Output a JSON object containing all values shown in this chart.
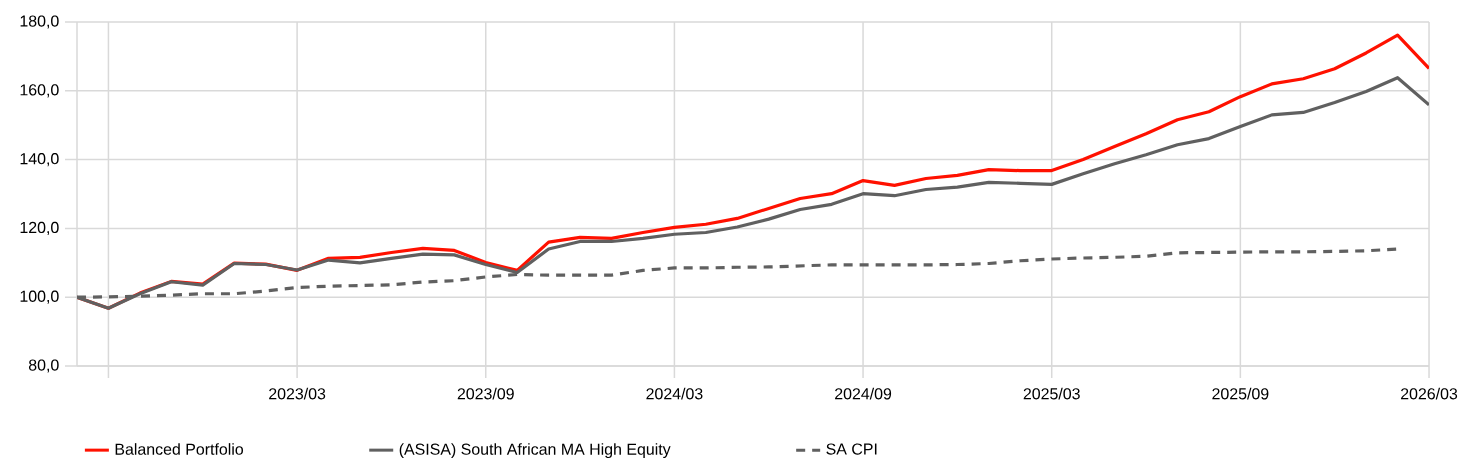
{
  "chart_data": {
    "type": "line",
    "x": [
      "2022-08",
      "2022-09",
      "2022-10",
      "2022-11",
      "2022-12",
      "2023-01",
      "2023-02",
      "2023-03",
      "2023-04",
      "2023-05",
      "2023-06",
      "2023-07",
      "2023-08",
      "2023-09",
      "2023-10",
      "2023-11",
      "2023-12",
      "2024-01",
      "2024-02",
      "2024-03",
      "2024-04",
      "2024-05",
      "2024-06",
      "2024-07",
      "2024-08",
      "2024-09",
      "2024-10",
      "2024-11",
      "2024-12",
      "2025-01",
      "2025-02",
      "2025-03",
      "2025-04",
      "2025-05",
      "2025-06",
      "2025-07",
      "2025-08",
      "2025-09",
      "2025-10",
      "2025-11",
      "2025-12",
      "2026-01",
      "2026-02",
      "2026-03"
    ],
    "series": [
      {
        "name": "Balanced Portfolio",
        "color": "#ff1100",
        "line_style": "solid",
        "values": [
          100,
          96.8,
          101.2,
          104.6,
          103.8,
          109.9,
          109.6,
          107.8,
          111.3,
          111.6,
          113.0,
          114.2,
          113.6,
          110.1,
          107.8,
          116.0,
          117.4,
          117.1,
          118.8,
          120.3,
          121.2,
          122.9,
          125.8,
          128.7,
          130.1,
          133.9,
          132.5,
          134.5,
          135.4,
          137.1,
          136.8,
          136.8,
          140.0,
          143.8,
          147.5,
          151.6,
          153.9,
          158.3,
          162.0,
          163.5,
          166.4,
          171.0,
          176.2,
          166.5
        ]
      },
      {
        "name": "(ASISA) South African MA High Equity",
        "color": "#606060",
        "line_style": "solid",
        "values": [
          100,
          96.8,
          101.0,
          104.5,
          103.5,
          109.8,
          109.5,
          107.9,
          110.8,
          110.0,
          111.3,
          112.5,
          112.3,
          109.5,
          107.2,
          114.0,
          116.2,
          116.2,
          117.1,
          118.3,
          118.8,
          120.4,
          122.7,
          125.5,
          127.0,
          130.1,
          129.5,
          131.3,
          132.0,
          133.4,
          133.1,
          132.8,
          135.9,
          138.8,
          141.4,
          144.3,
          146.1,
          149.6,
          153.0,
          153.7,
          156.6,
          159.8,
          163.8,
          155.9
        ]
      },
      {
        "name": "SA CPI",
        "color": "#606060",
        "line_style": "dashed",
        "values": [
          100,
          100.1,
          100.3,
          100.6,
          101.0,
          101.0,
          101.8,
          102.8,
          103.2,
          103.4,
          103.6,
          104.4,
          104.8,
          105.9,
          106.6,
          106.4,
          106.4,
          106.4,
          107.8,
          108.5,
          108.5,
          108.7,
          108.8,
          109.1,
          109.4,
          109.4,
          109.4,
          109.4,
          109.5,
          109.8,
          110.6,
          111.1,
          111.4,
          111.6,
          111.9,
          112.9,
          113.0,
          113.1,
          113.2,
          113.2,
          113.3,
          113.5,
          114.0,
          null
        ]
      }
    ],
    "xlim": [
      "2022-08",
      "2026-03"
    ],
    "xticks": [
      {
        "value": "2022-09",
        "label": null
      },
      {
        "value": "2023-03",
        "label": "2023/03"
      },
      {
        "value": "2023-09",
        "label": "2023/09"
      },
      {
        "value": "2024-03",
        "label": "2024/03"
      },
      {
        "value": "2024-09",
        "label": "2024/09"
      },
      {
        "value": "2025-03",
        "label": "2025/03"
      },
      {
        "value": "2025-09",
        "label": "2025/09"
      },
      {
        "value": "2026-03",
        "label": "2026/03"
      }
    ],
    "ylim": [
      80,
      180
    ],
    "yticks": [
      {
        "value": 80,
        "label": "80,0"
      },
      {
        "value": 100,
        "label": "100,0"
      },
      {
        "value": 120,
        "label": "120,0"
      },
      {
        "value": 140,
        "label": "140,0"
      },
      {
        "value": 160,
        "label": "160,0"
      },
      {
        "value": 180,
        "label": "180,0"
      }
    ],
    "grid": true,
    "legend": "bottom",
    "marker": "none"
  }
}
